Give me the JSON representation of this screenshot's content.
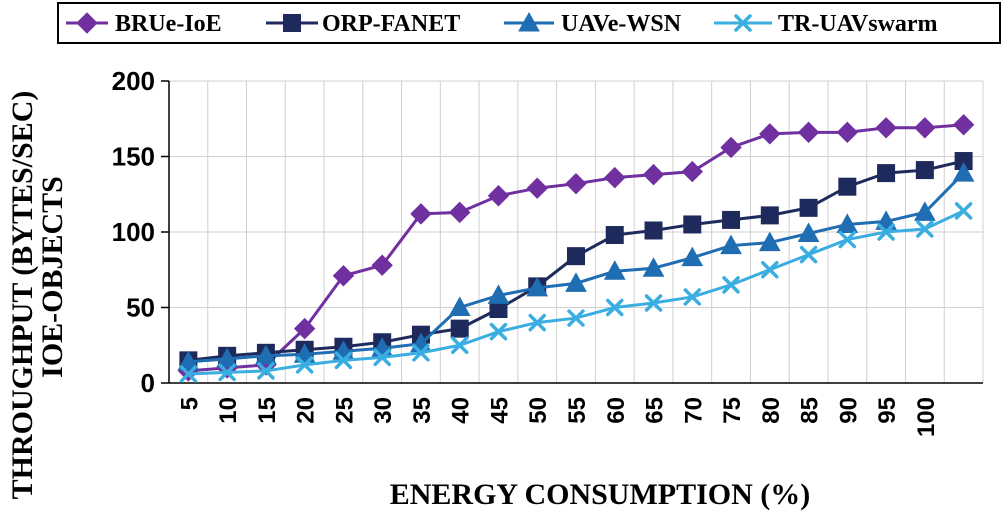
{
  "chart_data": {
    "type": "line",
    "x": [
      5,
      10,
      15,
      20,
      25,
      30,
      35,
      40,
      45,
      50,
      55,
      60,
      65,
      70,
      75,
      80,
      85,
      90,
      95,
      100,
      105
    ],
    "x_tick_labels": [
      "5",
      "10",
      "15",
      "20",
      "25",
      "30",
      "35",
      "40",
      "45",
      "50",
      "55",
      "60",
      "65",
      "70",
      "75",
      "80",
      "85",
      "90",
      "95",
      "100",
      ""
    ],
    "xlabel": "ENERGY CONSUMPTION (%)",
    "ylabel_lines": [
      "THROUGHPUT (BYTES/SEC)",
      "IOE-OBJECTS"
    ],
    "ylim": [
      0,
      200
    ],
    "yticks": [
      0,
      50,
      100,
      150,
      200
    ],
    "grid": true,
    "legend_position": "top",
    "series": [
      {
        "name": "BRUe-IoE",
        "color": "#7030A0",
        "marker": "diamond",
        "values": [
          8,
          10,
          12,
          36,
          71,
          78,
          112,
          113,
          124,
          129,
          132,
          136,
          138,
          140,
          156,
          165,
          166,
          166,
          169,
          169,
          171
        ]
      },
      {
        "name": "ORP-FANET",
        "color": "#1F2A5C",
        "marker": "square",
        "values": [
          15,
          18,
          20,
          22,
          24,
          27,
          32,
          36,
          49,
          64,
          84,
          98,
          101,
          105,
          108,
          111,
          116,
          130,
          139,
          141,
          147
        ]
      },
      {
        "name": "UAVe-WSN",
        "color": "#1F6DB3",
        "marker": "triangle",
        "values": [
          14,
          16,
          18,
          19,
          21,
          23,
          26,
          50,
          58,
          63,
          66,
          74,
          76,
          83,
          91,
          93,
          99,
          105,
          107,
          113,
          139
        ]
      },
      {
        "name": "TR-UAVswarm",
        "color": "#3AAEE0",
        "marker": "x",
        "values": [
          6,
          7,
          8,
          12,
          15,
          17,
          20,
          25,
          34,
          40,
          43,
          50,
          53,
          57,
          65,
          75,
          85,
          95,
          100,
          102,
          114
        ]
      }
    ]
  }
}
